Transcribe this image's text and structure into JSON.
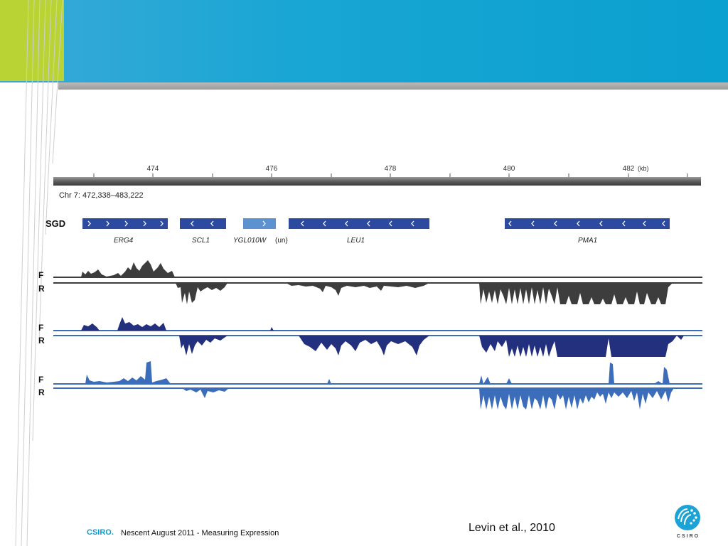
{
  "slide": {
    "citation": "Levin et al., 2010",
    "footer_brand": "CSIRO.",
    "footer_text": "Nescent August 2011 - Measuring Expression",
    "logo_text": "CSIRO",
    "colors": {
      "accent_blue": "#0aa0cf",
      "accent_green": "#b8d333",
      "rule_grey": "#a8a8a8"
    }
  },
  "genome_browser": {
    "axis_unit": "(kb)",
    "ticks": [
      "474",
      "476",
      "478",
      "480",
      "482"
    ],
    "coordinate_label": "Chr 7: 472,338–483,222",
    "track_label": "SGD",
    "genes": [
      {
        "name": "ERG4",
        "strand": "+"
      },
      {
        "name": "SCL1",
        "strand": "-"
      },
      {
        "name": "YGL010W",
        "suffix": "(un)",
        "strand": "+"
      },
      {
        "name": "LEU1",
        "strand": "-"
      },
      {
        "name": "PMA1",
        "strand": "-"
      }
    ],
    "strand_labels": {
      "forward": "F",
      "reverse": "R"
    },
    "coverage_colors": [
      "#3d3d3d",
      "#23307e",
      "#3c6dbb"
    ]
  }
}
